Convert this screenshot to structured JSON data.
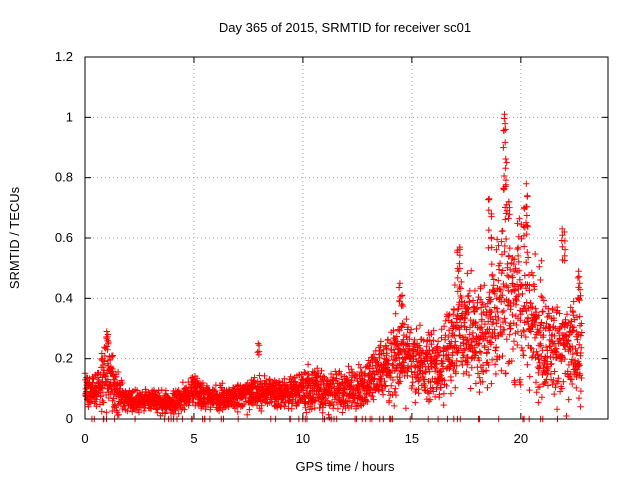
{
  "chart_data": {
    "type": "scatter",
    "title": "Day 365 of 2015, SRMTID for receiver sc01",
    "xlabel": "GPS time / hours",
    "ylabel": "SRMTID / TECUs",
    "xlim": [
      0,
      24
    ],
    "ylim": [
      0,
      1.2
    ],
    "xticks": [
      0,
      5,
      10,
      15,
      20
    ],
    "yticks": [
      0,
      0.2,
      0.4,
      0.6,
      0.8,
      1,
      1.2
    ],
    "xtick_labels": [
      "0",
      "5",
      "10",
      "15",
      "20"
    ],
    "ytick_labels": [
      "0",
      "0.2",
      "0.4",
      "0.6",
      "0.8",
      "1",
      "1.2"
    ],
    "grid": true,
    "marker": "+",
    "marker_color": "#ff0000",
    "trend": [
      [
        0.0,
        0.11,
        0.05
      ],
      [
        0.5,
        0.09,
        0.04
      ],
      [
        1.0,
        0.16,
        0.09
      ],
      [
        1.4,
        0.1,
        0.06
      ],
      [
        2.0,
        0.06,
        0.03
      ],
      [
        3.0,
        0.06,
        0.03
      ],
      [
        4.0,
        0.05,
        0.03
      ],
      [
        5.0,
        0.1,
        0.04
      ],
      [
        5.5,
        0.07,
        0.03
      ],
      [
        6.5,
        0.07,
        0.03
      ],
      [
        7.5,
        0.08,
        0.04
      ],
      [
        8.5,
        0.09,
        0.04
      ],
      [
        9.5,
        0.09,
        0.05
      ],
      [
        10.5,
        0.1,
        0.06
      ],
      [
        11.5,
        0.09,
        0.05
      ],
      [
        12.5,
        0.1,
        0.06
      ],
      [
        13.5,
        0.15,
        0.08
      ],
      [
        14.5,
        0.21,
        0.1
      ],
      [
        15.5,
        0.17,
        0.09
      ],
      [
        16.5,
        0.18,
        0.1
      ],
      [
        17.2,
        0.32,
        0.16
      ],
      [
        18.0,
        0.26,
        0.13
      ],
      [
        18.8,
        0.32,
        0.17
      ],
      [
        19.3,
        0.45,
        0.25
      ],
      [
        19.8,
        0.4,
        0.2
      ],
      [
        20.5,
        0.32,
        0.18
      ],
      [
        21.2,
        0.25,
        0.14
      ],
      [
        21.8,
        0.22,
        0.13
      ],
      [
        22.8,
        0.22,
        0.12
      ]
    ],
    "spikes": [
      [
        1.0,
        0.29
      ],
      [
        1.05,
        0.28
      ],
      [
        7.95,
        0.25
      ],
      [
        14.45,
        0.45
      ],
      [
        14.55,
        0.41
      ],
      [
        17.1,
        0.56
      ],
      [
        17.2,
        0.57
      ],
      [
        18.55,
        0.73
      ],
      [
        18.65,
        0.68
      ],
      [
        19.25,
        1.01
      ],
      [
        19.3,
        0.96
      ],
      [
        19.2,
        0.9
      ],
      [
        19.35,
        0.85
      ],
      [
        19.45,
        0.72
      ],
      [
        20.25,
        0.78
      ],
      [
        20.3,
        0.74
      ],
      [
        20.15,
        0.7
      ],
      [
        21.9,
        0.63
      ],
      [
        22.0,
        0.62
      ],
      [
        22.65,
        0.49
      ],
      [
        22.7,
        0.45
      ]
    ]
  }
}
